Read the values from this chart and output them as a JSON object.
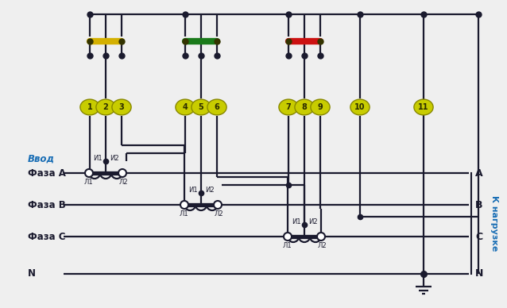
{
  "bg_color": "#efefef",
  "line_color": "#1a1a2e",
  "fuse_yellow": "#d4b000",
  "fuse_green": "#1a7a1a",
  "fuse_red": "#cc1111",
  "terminal_fill": "#c8cc00",
  "terminal_edge": "#888800",
  "terminal_text": "#2a2a00",
  "label_blue": "#1a6eb5",
  "phase_labels_left": [
    "Ввод",
    "Фаза A",
    "Фаза B",
    "Фаза C",
    "N"
  ],
  "phase_labels_right": [
    "A",
    "B",
    "C",
    "N"
  ],
  "right_vertical_label": "К нагрузке",
  "terminal_numbers": [
    "1",
    "2",
    "3",
    "4",
    "5",
    "6",
    "7",
    "8",
    "9",
    "10",
    "11"
  ]
}
